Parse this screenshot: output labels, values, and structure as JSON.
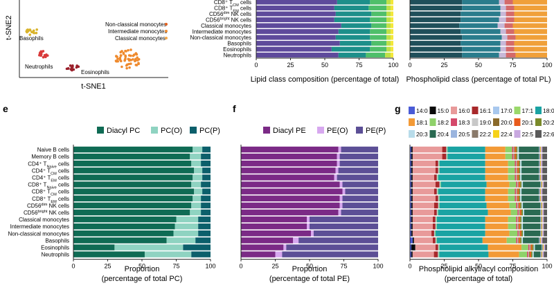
{
  "tsne": {
    "ylabel": "t-SNE2",
    "xlabel": "t-SNE1",
    "labels": [
      "Basophils",
      "Neutrophils",
      "Eosinophils",
      "Non-classical monocytes",
      "Intermediate monocytes",
      "Classical monocytes"
    ],
    "clusters": [
      {
        "name": "Basophils",
        "color": "#d9b32a"
      },
      {
        "name": "Neutrophils",
        "color": "#d93a3a"
      },
      {
        "name": "Eosinophils",
        "color": "#9a1f2a"
      },
      {
        "name": "Monocytes",
        "color": "#ef8a2d"
      }
    ],
    "legend_colors": [
      "#e25e1c",
      "#f08c30",
      "#f4a84a"
    ]
  },
  "top_cell_types": [
    "CD8⁺ T_CM cells",
    "CD8⁺ T_EM cells",
    "CD56^dim NK cells",
    "CD56^bright NK cells",
    "Classical monocytes",
    "Intermediate monocytes",
    "Non-classical monocytes",
    "Basophils",
    "Eosinophils",
    "Neutrophils"
  ],
  "cell_types": [
    "Naive B cells",
    "Memory B cells",
    "CD4⁺ T_Naive cells",
    "CD4⁺ T_CM cells",
    "CD4⁺ T_EM cells",
    "CD8⁺ T_Naive cells",
    "CD8⁺ T_CM cells",
    "CD8⁺ T_EM cells",
    "CD56^dim NK cells",
    "CD56^bright NK cells",
    "Classical monocytes",
    "Intermediate monocytes",
    "Non-classical monocytes",
    "Basophils",
    "Eosinophils",
    "Neutrophils"
  ],
  "chart_data": [
    {
      "id": "c",
      "type": "bar",
      "orientation": "horizontal",
      "stacked": true,
      "xlabel": "Lipid class composition (percentage of total)",
      "xlim": [
        0,
        100
      ],
      "xticks": [
        0,
        25,
        50,
        75,
        100
      ],
      "series_colors": [
        "#5e4a9b",
        "#1d8f8a",
        "#4fbf6a",
        "#bfe046",
        "#f3e83a"
      ],
      "rows": [
        [
          59,
          24,
          12,
          3,
          2
        ],
        [
          57,
          25,
          13,
          3,
          2
        ],
        [
          58,
          26,
          11,
          3,
          2
        ],
        [
          57,
          26,
          12,
          3,
          2
        ],
        [
          62,
          22,
          11,
          3,
          2
        ],
        [
          60,
          23,
          12,
          3,
          2
        ],
        [
          58,
          25,
          12,
          3,
          2
        ],
        [
          61,
          23,
          11,
          3,
          2
        ],
        [
          55,
          28,
          12,
          3,
          2
        ],
        [
          60,
          20,
          14,
          4,
          2
        ]
      ]
    },
    {
      "id": "d",
      "type": "bar",
      "orientation": "horizontal",
      "stacked": true,
      "xlabel": "Phospholipid class (percentage of total PL)",
      "xlim": [
        0,
        100
      ],
      "xticks": [
        0,
        25,
        50,
        75,
        100
      ],
      "series_colors": [
        "#1f4f5a",
        "#2a7c8c",
        "#c8b8d8",
        "#d46a6a",
        "#f0a03a"
      ],
      "rows": [
        [
          38,
          27,
          4,
          6,
          25
        ],
        [
          38,
          28,
          4,
          6,
          24
        ],
        [
          37,
          29,
          4,
          6,
          24
        ],
        [
          37,
          28,
          5,
          6,
          24
        ],
        [
          36,
          28,
          5,
          6,
          25
        ],
        [
          37,
          29,
          4,
          6,
          24
        ],
        [
          38,
          29,
          4,
          6,
          23
        ],
        [
          37,
          29,
          4,
          6,
          24
        ],
        [
          38,
          28,
          4,
          6,
          24
        ],
        [
          38,
          27,
          5,
          7,
          23
        ]
      ]
    },
    {
      "id": "e",
      "panel_label": "e",
      "type": "bar",
      "orientation": "horizontal",
      "stacked": true,
      "xlabel": "Proportion",
      "xlabel2": "(percentage of total PC)",
      "xlim": [
        0,
        100
      ],
      "xticks": [
        0,
        25,
        50,
        75,
        100
      ],
      "series": [
        {
          "name": "Diacyl PC",
          "color": "#0f6b54",
          "values": [
            87,
            85,
            86,
            88,
            87,
            86,
            88,
            87,
            86,
            85,
            75,
            74,
            73,
            68,
            30,
            52
          ]
        },
        {
          "name": "PC(O)",
          "color": "#8fd3c1",
          "values": [
            7,
            8,
            7,
            6,
            7,
            7,
            6,
            6,
            7,
            8,
            16,
            17,
            18,
            21,
            50,
            34
          ]
        },
        {
          "name": "PC(P)",
          "color": "#0c5f6b",
          "values": [
            6,
            7,
            7,
            6,
            6,
            7,
            6,
            7,
            7,
            7,
            9,
            9,
            9,
            11,
            20,
            14
          ]
        }
      ]
    },
    {
      "id": "f",
      "panel_label": "f",
      "type": "bar",
      "orientation": "horizontal",
      "stacked": true,
      "xlabel": "Proportion",
      "xlabel2": "(percentage of total PE)",
      "xlim": [
        0,
        100
      ],
      "xticks": [
        0,
        25,
        50,
        75,
        100
      ],
      "series": [
        {
          "name": "Diacyl PE",
          "color": "#7b2a86",
          "values": [
            71,
            70,
            70,
            69,
            68,
            72,
            74,
            72,
            72,
            71,
            48,
            48,
            51,
            38,
            31,
            25
          ]
        },
        {
          "name": "PE(O)",
          "color": "#d7a8ef",
          "values": [
            2,
            2,
            2,
            2,
            2,
            2,
            2,
            2,
            2,
            2,
            2,
            2,
            2,
            4,
            2,
            5
          ]
        },
        {
          "name": "PE(P)",
          "color": "#5c4f96",
          "values": [
            27,
            28,
            28,
            29,
            30,
            26,
            24,
            26,
            26,
            27,
            50,
            50,
            47,
            58,
            67,
            70
          ]
        }
      ]
    },
    {
      "id": "g",
      "panel_label": "g",
      "type": "bar",
      "orientation": "horizontal",
      "stacked": true,
      "xlabel": "Phospholipid alkyl/acyl composition",
      "xlabel2": "(percentage of total)",
      "xlim": [
        0,
        100
      ],
      "xticks": [
        0,
        25,
        50,
        75,
        100
      ],
      "series": [
        {
          "name": "14:0",
          "color": "#4a5bd6"
        },
        {
          "name": "15:0",
          "color": "#0a0a0a"
        },
        {
          "name": "16:0",
          "color": "#e89a9a"
        },
        {
          "name": "16:1",
          "color": "#a8282a"
        },
        {
          "name": "17:0",
          "color": "#a8c8ee"
        },
        {
          "name": "17:1",
          "color": "#9ad86a"
        },
        {
          "name": "18:0",
          "color": "#1aa3a3"
        },
        {
          "name": "18:1",
          "color": "#f39a36"
        },
        {
          "name": "18:2",
          "color": "#8fd16a"
        },
        {
          "name": "18:3",
          "color": "#d4486a"
        },
        {
          "name": "19:0",
          "color": "#c8c8c8"
        },
        {
          "name": "20:0",
          "color": "#8a6a2a"
        },
        {
          "name": "20:1",
          "color": "#e85a1a"
        },
        {
          "name": "20:2",
          "color": "#7a8a2a"
        },
        {
          "name": "20:3",
          "color": "#b8dcea"
        },
        {
          "name": "20:4",
          "color": "#2a6a52"
        },
        {
          "name": "20:5",
          "color": "#9ab4de"
        },
        {
          "name": "22:2",
          "color": "#8a7a6a"
        },
        {
          "name": "22:4",
          "color": "#f6d21a"
        },
        {
          "name": "22:5",
          "color": "#c8a8e0"
        },
        {
          "name": "22:6",
          "color": "#5a5a5a"
        }
      ],
      "rows": [
        [
          1,
          1,
          22,
          3,
          0.5,
          0.5,
          28,
          15,
          5,
          1,
          0.5,
          0.5,
          1,
          1,
          1,
          15,
          0.5,
          0.5,
          0.5,
          1,
          3.5
        ],
        [
          1,
          1,
          22,
          3,
          0.5,
          0.5,
          28,
          15,
          5,
          1,
          0.5,
          0.5,
          1,
          1,
          1,
          15,
          0.5,
          0.5,
          0.5,
          1,
          3.5
        ],
        [
          1,
          1,
          17,
          2,
          0.5,
          0.5,
          34,
          17,
          5,
          1,
          0.5,
          0.5,
          1,
          1,
          1,
          13,
          0.5,
          0.5,
          0.5,
          1,
          3.5
        ],
        [
          1,
          1,
          17,
          2,
          0.5,
          0.5,
          34,
          17,
          5,
          1,
          0.5,
          0.5,
          1,
          1,
          1,
          13,
          0.5,
          0.5,
          0.5,
          1,
          3.5
        ],
        [
          1,
          1,
          16,
          2,
          0.5,
          0.5,
          35,
          17,
          5,
          1,
          0.5,
          0.5,
          1,
          1,
          1,
          13,
          0.5,
          0.5,
          0.5,
          1,
          3.5
        ],
        [
          1,
          1,
          17,
          3,
          0.5,
          0.5,
          34,
          17,
          5,
          1,
          0.5,
          0.5,
          1,
          1,
          1,
          13,
          0.5,
          0.5,
          0.5,
          1,
          2.5
        ],
        [
          1,
          1,
          16,
          2,
          0.5,
          0.5,
          35,
          17,
          5,
          1,
          0.5,
          0.5,
          1,
          1,
          1,
          13,
          0.5,
          0.5,
          0.5,
          1,
          3.5
        ],
        [
          1,
          1,
          17,
          2,
          0.5,
          0.5,
          34,
          17,
          5,
          1,
          0.5,
          0.5,
          1,
          1,
          1,
          13,
          0.5,
          0.5,
          0.5,
          1,
          3.5
        ],
        [
          1,
          1,
          16,
          3,
          0.5,
          0.5,
          35,
          17,
          5,
          1,
          0.5,
          0.5,
          1,
          1,
          1,
          13,
          0.5,
          0.5,
          0.5,
          1,
          2.5
        ],
        [
          1,
          1,
          16,
          2,
          0.5,
          0.5,
          37,
          17,
          5,
          1,
          0.5,
          0.5,
          1,
          1,
          1,
          12,
          0.5,
          0.5,
          0.5,
          1,
          2.5
        ],
        [
          1,
          1,
          15,
          2,
          0.5,
          0.5,
          36,
          17,
          6,
          1,
          0.5,
          0.5,
          1,
          1,
          1,
          13,
          0.5,
          0.5,
          0.5,
          1,
          2.5
        ],
        [
          1,
          1,
          15,
          2,
          0.5,
          0.5,
          36,
          17,
          6,
          1,
          0.5,
          0.5,
          1,
          1,
          1,
          13,
          0.5,
          0.5,
          0.5,
          1,
          2.5
        ],
        [
          1,
          1,
          14,
          2,
          0.5,
          0.5,
          37,
          18,
          6,
          1,
          0.5,
          0.5,
          1,
          1,
          1,
          12,
          0.5,
          0.5,
          0.5,
          1,
          2.5
        ],
        [
          2,
          1,
          14,
          2,
          0.5,
          0.5,
          34,
          18,
          7,
          1,
          0.5,
          0.5,
          1,
          1,
          1,
          12,
          0.5,
          0.5,
          0.5,
          1,
          3.5
        ],
        [
          1,
          3,
          15,
          2,
          0.5,
          0.5,
          36,
          25,
          5,
          1,
          0.5,
          0.5,
          1,
          1,
          1,
          5,
          0.5,
          0.5,
          0.5,
          1,
          1.5
        ],
        [
          1,
          1,
          16,
          3,
          0.5,
          0.5,
          37,
          23,
          6,
          1,
          0.5,
          0.5,
          1,
          1,
          1,
          5,
          0.5,
          0.5,
          0.5,
          1,
          2.5
        ]
      ]
    }
  ]
}
